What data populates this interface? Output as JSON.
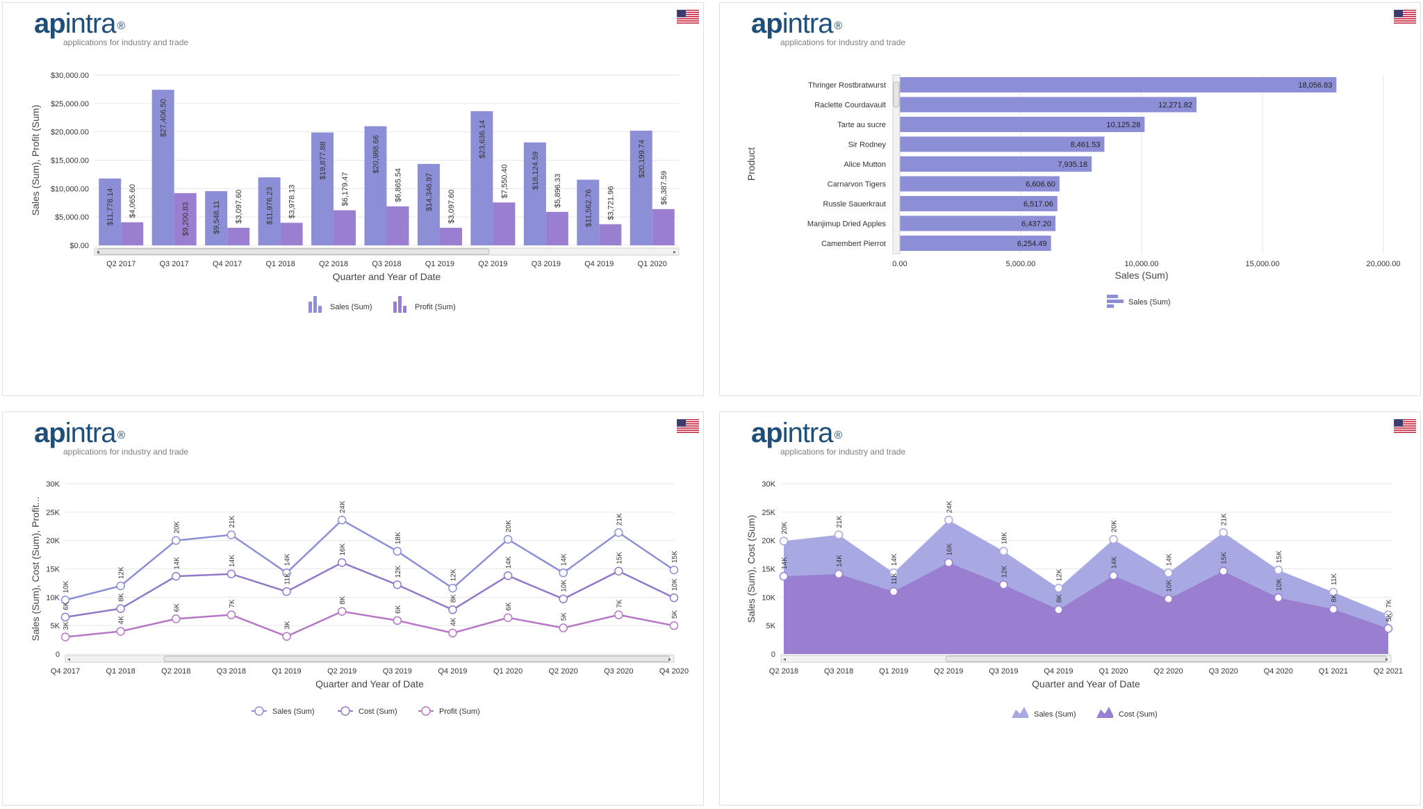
{
  "brand": {
    "name_bold": "ap",
    "name_rest": "intra",
    "reg": "®",
    "tagline": "applications for industry and trade"
  },
  "flag_icon": "us-flag-icon",
  "colors": {
    "sales": "#8c8fd6",
    "profit": "#9a7fd1",
    "cost": "#9079c9",
    "profit_line": "#b776c6",
    "grid": "#e4e6ea",
    "brand": "#1f4e79"
  },
  "chart_data": [
    {
      "type": "bar",
      "categories": [
        "Q2 2017",
        "Q3 2017",
        "Q4 2017",
        "Q1 2018",
        "Q2 2018",
        "Q3 2018",
        "Q1 2019",
        "Q2 2019",
        "Q3 2019",
        "Q4 2019",
        "Q1 2020"
      ],
      "series": [
        {
          "name": "Sales (Sum)",
          "values": [
            11778.14,
            27406.5,
            9548.11,
            11976.23,
            19877.88,
            20988.66,
            14346.97,
            23636.14,
            18124.59,
            11562.76,
            20199.74
          ],
          "labels": [
            "$11,778.14",
            "$27,406.50",
            "$9,548.11",
            "$11,976.23",
            "$19,877.88",
            "$20,988.66",
            "$14,346.97",
            "$23,636.14",
            "$18,124.59",
            "$11,562.76",
            "$20,199.74"
          ]
        },
        {
          "name": "Profit (Sum)",
          "values": [
            4065.6,
            9200.83,
            3097.6,
            3978.13,
            6179.47,
            6865.54,
            3097.6,
            7550.4,
            5896.33,
            3721.96,
            6387.59
          ],
          "labels": [
            "$4,065.60",
            "$9,200.83",
            "$3,097.60",
            "$3,978.13",
            "$6,179.47",
            "$6,865.54",
            "$3,097.60",
            "$7,550.40",
            "$5,896.33",
            "$3,721.96",
            "$6,387.59"
          ]
        }
      ],
      "ylim": [
        0,
        30000
      ],
      "yticks": [
        "$0.00",
        "$5,000.00",
        "$10,000.00",
        "$15,000.00",
        "$20,000.00",
        "$25,000.00",
        "$30,000.00"
      ],
      "xlabel": "Quarter and Year of Date",
      "ylabel": "Sales (Sum), Profit (Sum)",
      "legend": [
        "Sales (Sum)",
        "Profit (Sum)"
      ]
    },
    {
      "type": "bar",
      "orientation": "horizontal",
      "categories": [
        "Thringer Rostbratwurst",
        "Raclette Courdavault",
        "Tarte au sucre",
        "Sir Rodney",
        "Alice Mutton",
        "Carnarvon Tigers",
        "Russle Sauerkraut",
        "Manjimup Dried Apples",
        "Camembert Pierrot"
      ],
      "values": [
        18056.83,
        12271.82,
        10125.28,
        8461.53,
        7935.18,
        6606.6,
        6517.06,
        6437.2,
        6254.49
      ],
      "labels": [
        "18,056.83",
        "12,271.82",
        "10,125.28",
        "8,461.53",
        "7,935.18",
        "6,606.60",
        "6,517.06",
        "6,437.20",
        "6,254.49"
      ],
      "xlim": [
        0,
        20000
      ],
      "xticks": [
        "0.00",
        "5,000.00",
        "10,000.00",
        "15,000.00",
        "20,000.00"
      ],
      "xlabel": "Sales (Sum)",
      "ylabel": "Product",
      "legend": [
        "Sales (Sum)"
      ]
    },
    {
      "type": "line",
      "x": [
        "Q4 2017",
        "Q1 2018",
        "Q2 2018",
        "Q3 2018",
        "Q1 2019",
        "Q2 2019",
        "Q3 2019",
        "Q4 2019",
        "Q1 2020",
        "Q2 2020",
        "Q3 2020",
        "Q4 2020"
      ],
      "series": [
        {
          "name": "Sales (Sum)",
          "values": [
            9500,
            12000,
            20000,
            21000,
            14300,
            23600,
            18100,
            11600,
            20200,
            14300,
            21400,
            14800
          ],
          "labels": [
            "10K",
            "12K",
            "20K",
            "21K",
            "14K",
            "24K",
            "18K",
            "12K",
            "20K",
            "14K",
            "21K",
            "15K"
          ]
        },
        {
          "name": "Cost (Sum)",
          "values": [
            6500,
            8000,
            13700,
            14100,
            11000,
            16100,
            12200,
            7800,
            13800,
            9700,
            14600,
            9900
          ],
          "labels": [
            "6K",
            "8K",
            "14K",
            "14K",
            "11K",
            "16K",
            "12K",
            "8K",
            "14K",
            "10K",
            "15K",
            "10K"
          ]
        },
        {
          "name": "Profit (Sum)",
          "values": [
            3000,
            4000,
            6200,
            6900,
            3100,
            7500,
            5900,
            3700,
            6400,
            4600,
            6900,
            5000
          ],
          "labels": [
            "3K",
            "4K",
            "6K",
            "7K",
            "3K",
            "8K",
            "6K",
            "4K",
            "6K",
            "5K",
            "7K",
            "5K"
          ]
        }
      ],
      "ylim": [
        0,
        30000
      ],
      "yticks": [
        "0",
        "5K",
        "10K",
        "15K",
        "20K",
        "25K",
        "30K"
      ],
      "xlabel": "Quarter and Year of Date",
      "ylabel": "Sales (Sum), Cost (Sum), Profit...",
      "legend": [
        "Sales (Sum)",
        "Cost (Sum)",
        "Profit (Sum)"
      ]
    },
    {
      "type": "area",
      "x": [
        "Q2 2018",
        "Q3 2018",
        "Q1 2019",
        "Q2 2019",
        "Q3 2019",
        "Q4 2019",
        "Q1 2020",
        "Q2 2020",
        "Q3 2020",
        "Q4 2020",
        "Q1 2021",
        "Q2 2021"
      ],
      "series": [
        {
          "name": "Sales (Sum)",
          "values": [
            19900,
            21000,
            14300,
            23600,
            18100,
            11600,
            20200,
            14300,
            21400,
            14800,
            10900,
            6900
          ],
          "labels": [
            "20K",
            "21K",
            "14K",
            "24K",
            "18K",
            "12K",
            "20K",
            "14K",
            "21K",
            "15K",
            "11K",
            "7K"
          ]
        },
        {
          "name": "Cost (Sum)",
          "values": [
            13700,
            14100,
            11000,
            16100,
            12200,
            7800,
            13800,
            9700,
            14600,
            9900,
            7900,
            4500
          ],
          "labels": [
            "14K",
            "14K",
            "11K",
            "16K",
            "12K",
            "8K",
            "14K",
            "10K",
            "15K",
            "10K",
            "8K",
            "5K"
          ]
        }
      ],
      "ylim": [
        0,
        30000
      ],
      "yticks": [
        "0",
        "5K",
        "10K",
        "15K",
        "20K",
        "25K",
        "30K"
      ],
      "xlabel": "Quarter and Year of Date",
      "ylabel": "Sales (Sum), Cost (Sum)",
      "legend": [
        "Sales (Sum)",
        "Cost (Sum)"
      ]
    }
  ]
}
